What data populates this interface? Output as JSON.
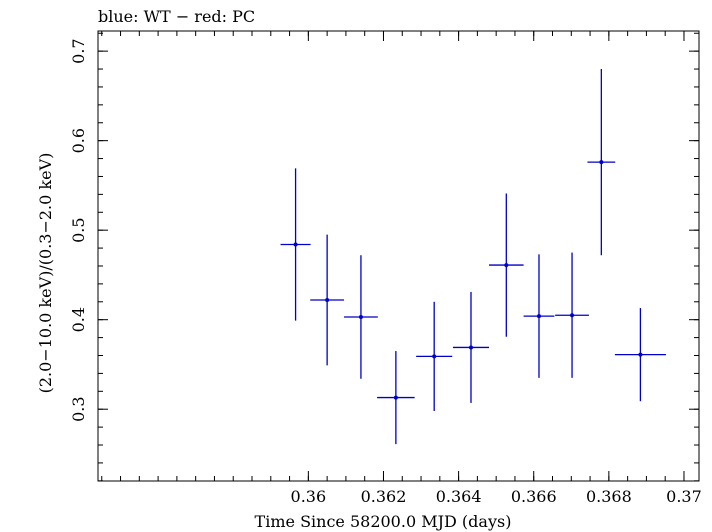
{
  "chart_data": {
    "type": "scatter",
    "title": "blue: WT − red: PC",
    "xlabel": "Time Since 58200.0 MJD (days)",
    "ylabel": "(2.0−10.0 keV)/(0.3−2.0 keV)",
    "xlim": [
      0.3544,
      0.3704
    ],
    "ylim": [
      0.2198,
      0.7225
    ],
    "xticks": [
      0.36,
      0.362,
      0.364,
      0.366,
      0.368,
      0.37
    ],
    "xtick_labels": [
      "0.36",
      "0.362",
      "0.364",
      "0.366",
      "0.368",
      "0.37"
    ],
    "yticks": [
      0.3,
      0.4,
      0.5,
      0.6,
      0.7
    ],
    "ytick_labels": [
      "0.3",
      "0.4",
      "0.5",
      "0.6",
      "0.7"
    ],
    "grid": false,
    "series": [
      {
        "color": "#0000cc",
        "points": [
          {
            "x": 0.35966,
            "xerr": 0.0004,
            "y": 0.484,
            "yerr": 0.085
          },
          {
            "x": 0.3605,
            "xerr": 0.00045,
            "y": 0.422,
            "yerr": 0.073
          },
          {
            "x": 0.3614,
            "xerr": 0.00045,
            "y": 0.403,
            "yerr": 0.069
          },
          {
            "x": 0.36233,
            "xerr": 0.0005,
            "y": 0.313,
            "yerr": 0.052
          },
          {
            "x": 0.36335,
            "xerr": 0.00048,
            "y": 0.359,
            "yerr": 0.061
          },
          {
            "x": 0.36433,
            "xerr": 0.00048,
            "y": 0.369,
            "yerr": 0.062
          },
          {
            "x": 0.36527,
            "xerr": 0.00046,
            "y": 0.461,
            "yerr": 0.08
          },
          {
            "x": 0.36614,
            "xerr": 0.00041,
            "y": 0.404,
            "yerr": 0.069
          },
          {
            "x": 0.36702,
            "xerr": 0.00045,
            "y": 0.405,
            "yerr": 0.07
          },
          {
            "x": 0.3678,
            "xerr": 0.00037,
            "y": 0.576,
            "yerr": 0.104
          },
          {
            "x": 0.36884,
            "xerr": 0.00068,
            "y": 0.361,
            "yerr": 0.052
          }
        ]
      }
    ]
  }
}
